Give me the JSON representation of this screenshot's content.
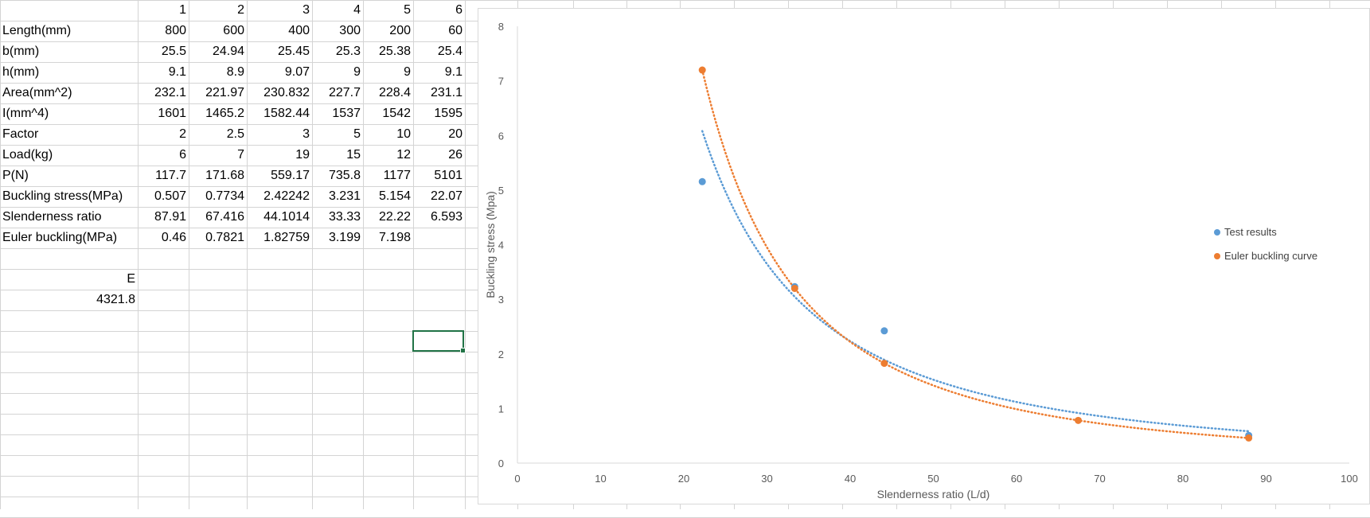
{
  "sheet": {
    "rows": [
      {
        "label": "",
        "values": [
          "1",
          "2",
          "3",
          "4",
          "5",
          "6"
        ]
      },
      {
        "label": "Length(mm)",
        "values": [
          "800",
          "600",
          "400",
          "300",
          "200",
          "60"
        ]
      },
      {
        "label": "b(mm)",
        "values": [
          "25.5",
          "24.94",
          "25.45",
          "25.3",
          "25.38",
          "25.4"
        ]
      },
      {
        "label": "h(mm)",
        "values": [
          "9.1",
          "8.9",
          "9.07",
          "9",
          "9",
          "9.1"
        ]
      },
      {
        "label": "Area(mm^2)",
        "values": [
          "232.1",
          "221.97",
          "230.832",
          "227.7",
          "228.4",
          "231.1"
        ]
      },
      {
        "label": "I(mm^4)",
        "values": [
          "1601",
          "1465.2",
          "1582.44",
          "1537",
          "1542",
          "1595"
        ]
      },
      {
        "label": "Factor",
        "values": [
          "2",
          "2.5",
          "3",
          "5",
          "10",
          "20"
        ]
      },
      {
        "label": "Load(kg)",
        "values": [
          "6",
          "7",
          "19",
          "15",
          "12",
          "26"
        ]
      },
      {
        "label": "P(N)",
        "values": [
          "117.7",
          "171.68",
          "559.17",
          "735.8",
          "1177",
          "5101"
        ]
      },
      {
        "label": "Buckling stress(MPa)",
        "values": [
          "0.507",
          "0.7734",
          "2.42242",
          "3.231",
          "5.154",
          "22.07"
        ]
      },
      {
        "label": "Slenderness ratio",
        "values": [
          "87.91",
          "67.416",
          "44.1014",
          "33.33",
          "22.22",
          "6.593"
        ]
      },
      {
        "label": "Euler buckling(MPa)",
        "values": [
          "0.46",
          "0.7821",
          "1.82759",
          "3.199",
          "7.198",
          ""
        ]
      }
    ],
    "e_label": "E",
    "e_value": "4321.8"
  },
  "chart_data": {
    "type": "scatter",
    "xlabel": "Slenderness ratio (L/d)",
    "ylabel": "Buckling stress (Mpa)",
    "xlim": [
      0,
      100
    ],
    "ylim": [
      0,
      8
    ],
    "xticks": [
      "0",
      "10",
      "20",
      "30",
      "40",
      "50",
      "60",
      "70",
      "80",
      "90",
      "100"
    ],
    "yticks": [
      "0",
      "1",
      "2",
      "3",
      "4",
      "5",
      "6",
      "7",
      "8"
    ],
    "grid": false,
    "legend_position": "right",
    "series": [
      {
        "name": "Test results",
        "color": "#5b9bd5",
        "points": [
          [
            87.91,
            0.507
          ],
          [
            44.1014,
            2.42242
          ],
          [
            33.33,
            3.231
          ],
          [
            22.22,
            5.154
          ]
        ],
        "trendline": "power, dotted"
      },
      {
        "name": "Euler buckling curve",
        "color": "#ed7d31",
        "points": [
          [
            87.91,
            0.46
          ],
          [
            67.416,
            0.7821
          ],
          [
            44.1014,
            1.82759
          ],
          [
            33.33,
            3.199
          ],
          [
            22.22,
            7.198
          ]
        ],
        "trendline": "power, dotted"
      }
    ]
  }
}
